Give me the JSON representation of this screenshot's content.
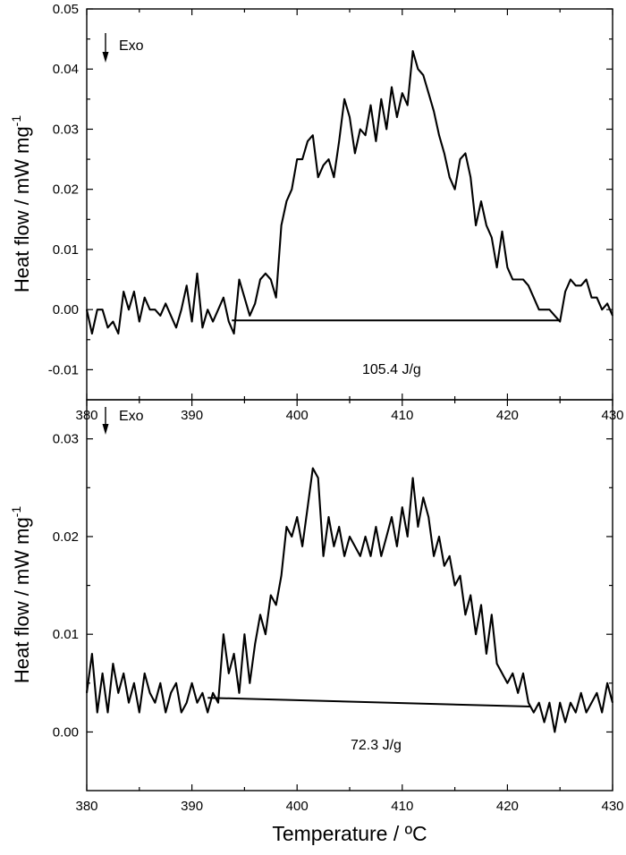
{
  "chart_data": [
    {
      "type": "line",
      "panel": "top",
      "xlim": [
        380,
        430
      ],
      "ylim": [
        -0.015,
        0.05
      ],
      "x_ticks": [
        "380",
        "390",
        "400",
        "410",
        "420",
        "430"
      ],
      "y_ticks": [
        "-0.01",
        "0.00",
        "0.01",
        "0.02",
        "0.03",
        "0.04",
        "0.05"
      ],
      "ylabel": "Heat flow / mW mg",
      "ylabel_sup": "-1",
      "xlabel": "",
      "grid": false,
      "exo_label": "Exo",
      "annotation": "105.4 J/g",
      "baseline": {
        "x": [
          393.8,
          425.0
        ],
        "y": [
          -0.0018,
          -0.0018
        ]
      },
      "series": [
        {
          "x": [
            380.0,
            380.5,
            381.0,
            381.5,
            382.0,
            382.5,
            383.0,
            383.5,
            384.0,
            384.5,
            385.0,
            385.5,
            386.0,
            386.5,
            387.0,
            387.5,
            388.0,
            388.5,
            389.0,
            389.5,
            390.0,
            390.5,
            391.0,
            391.5,
            392.0,
            392.5,
            393.0,
            393.5,
            394.0,
            394.5,
            395.0,
            395.5,
            396.0,
            396.5,
            397.0,
            397.5,
            398.0,
            398.5,
            399.0,
            399.5,
            400.0,
            400.5,
            401.0,
            401.5,
            402.0,
            402.5,
            403.0,
            403.5,
            404.0,
            404.5,
            405.0,
            405.5,
            406.0,
            406.5,
            407.0,
            407.5,
            408.0,
            408.5,
            409.0,
            409.5,
            410.0,
            410.5,
            411.0,
            411.5,
            412.0,
            412.5,
            413.0,
            413.5,
            414.0,
            414.5,
            415.0,
            415.5,
            416.0,
            416.5,
            417.0,
            417.5,
            418.0,
            418.5,
            419.0,
            419.5,
            420.0,
            420.5,
            421.0,
            421.5,
            422.0,
            422.5,
            423.0,
            423.5,
            424.0,
            424.5,
            425.0,
            425.5,
            426.0,
            426.5,
            427.0,
            427.5,
            428.0,
            428.5,
            429.0,
            429.5,
            430.0
          ],
          "y": [
            0.0,
            -0.004,
            0.0,
            0.0,
            -0.003,
            -0.002,
            -0.004,
            0.003,
            0.0,
            0.003,
            -0.002,
            0.002,
            0.0,
            0.0,
            -0.001,
            0.001,
            -0.001,
            -0.003,
            0.0,
            0.004,
            -0.002,
            0.006,
            -0.003,
            0.0,
            -0.002,
            0.0,
            0.002,
            -0.002,
            -0.004,
            0.005,
            0.002,
            -0.001,
            0.001,
            0.005,
            0.006,
            0.005,
            0.002,
            0.014,
            0.018,
            0.02,
            0.025,
            0.025,
            0.028,
            0.029,
            0.022,
            0.024,
            0.025,
            0.022,
            0.028,
            0.035,
            0.032,
            0.026,
            0.03,
            0.029,
            0.034,
            0.028,
            0.035,
            0.03,
            0.037,
            0.032,
            0.036,
            0.034,
            0.043,
            0.04,
            0.039,
            0.036,
            0.033,
            0.029,
            0.026,
            0.022,
            0.02,
            0.025,
            0.026,
            0.022,
            0.014,
            0.018,
            0.014,
            0.012,
            0.007,
            0.013,
            0.007,
            0.005,
            0.005,
            0.005,
            0.004,
            0.002,
            0.0,
            0.0,
            0.0,
            -0.001,
            -0.002,
            0.003,
            0.005,
            0.004,
            0.004,
            0.005,
            0.002,
            0.002,
            0.0,
            0.001,
            -0.001
          ]
        }
      ]
    },
    {
      "type": "line",
      "panel": "bottom",
      "xlim": [
        380,
        430
      ],
      "ylim": [
        -0.006,
        0.034
      ],
      "x_ticks": [
        "380",
        "390",
        "400",
        "410",
        "420",
        "430"
      ],
      "y_ticks": [
        "0.00",
        "0.01",
        "0.02",
        "0.03"
      ],
      "ylabel": "Heat flow / mW mg",
      "ylabel_sup": "-1",
      "xlabel": "Temperature / ºC",
      "grid": false,
      "exo_label": "Exo",
      "annotation": "72.3 J/g",
      "baseline": {
        "x": [
          391.5,
          422.2
        ],
        "y": [
          0.0035,
          0.0026
        ]
      },
      "series": [
        {
          "x": [
            380.0,
            380.5,
            381.0,
            381.5,
            382.0,
            382.5,
            383.0,
            383.5,
            384.0,
            384.5,
            385.0,
            385.5,
            386.0,
            386.5,
            387.0,
            387.5,
            388.0,
            388.5,
            389.0,
            389.5,
            390.0,
            390.5,
            391.0,
            391.5,
            392.0,
            392.5,
            393.0,
            393.5,
            394.0,
            394.5,
            395.0,
            395.5,
            396.0,
            396.5,
            397.0,
            397.5,
            398.0,
            398.5,
            399.0,
            399.5,
            400.0,
            400.5,
            401.0,
            401.5,
            402.0,
            402.5,
            403.0,
            403.5,
            404.0,
            404.5,
            405.0,
            405.5,
            406.0,
            406.5,
            407.0,
            407.5,
            408.0,
            408.5,
            409.0,
            409.5,
            410.0,
            410.5,
            411.0,
            411.5,
            412.0,
            412.5,
            413.0,
            413.5,
            414.0,
            414.5,
            415.0,
            415.5,
            416.0,
            416.5,
            417.0,
            417.5,
            418.0,
            418.5,
            419.0,
            419.5,
            420.0,
            420.5,
            421.0,
            421.5,
            422.0,
            422.5,
            423.0,
            423.5,
            424.0,
            424.5,
            425.0,
            425.5,
            426.0,
            426.5,
            427.0,
            427.5,
            428.0,
            428.5,
            429.0,
            429.5,
            430.0
          ],
          "y": [
            0.004,
            0.008,
            0.002,
            0.006,
            0.002,
            0.007,
            0.004,
            0.006,
            0.003,
            0.005,
            0.002,
            0.006,
            0.004,
            0.003,
            0.005,
            0.002,
            0.004,
            0.005,
            0.002,
            0.003,
            0.005,
            0.003,
            0.004,
            0.002,
            0.004,
            0.003,
            0.01,
            0.006,
            0.008,
            0.004,
            0.01,
            0.005,
            0.009,
            0.012,
            0.01,
            0.014,
            0.013,
            0.016,
            0.021,
            0.02,
            0.022,
            0.019,
            0.023,
            0.027,
            0.026,
            0.018,
            0.022,
            0.019,
            0.021,
            0.018,
            0.02,
            0.019,
            0.018,
            0.02,
            0.018,
            0.021,
            0.018,
            0.02,
            0.022,
            0.019,
            0.023,
            0.02,
            0.026,
            0.021,
            0.024,
            0.022,
            0.018,
            0.02,
            0.017,
            0.018,
            0.015,
            0.016,
            0.012,
            0.014,
            0.01,
            0.013,
            0.008,
            0.012,
            0.007,
            0.006,
            0.005,
            0.006,
            0.004,
            0.006,
            0.003,
            0.002,
            0.003,
            0.001,
            0.003,
            0.0,
            0.003,
            0.001,
            0.003,
            0.002,
            0.004,
            0.002,
            0.003,
            0.004,
            0.002,
            0.005,
            0.003
          ]
        }
      ]
    }
  ]
}
